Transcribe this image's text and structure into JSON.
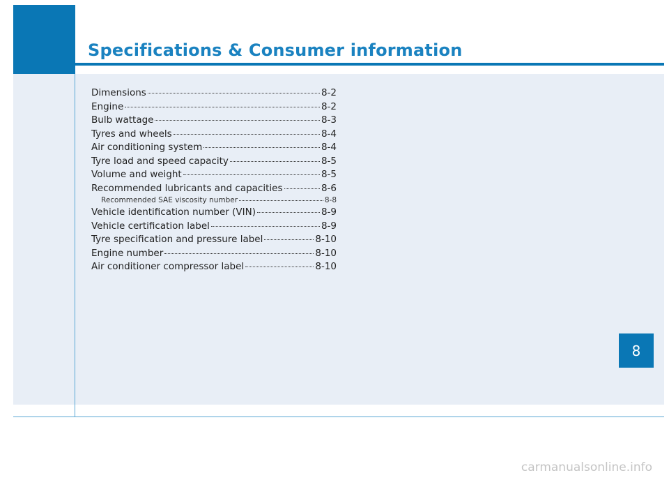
{
  "header": {
    "title": "Specifications & Consumer information"
  },
  "toc": [
    {
      "label": "Dimensions",
      "page": "8-2",
      "sub": false
    },
    {
      "label": "Engine",
      "page": "8-2",
      "sub": false
    },
    {
      "label": "Bulb wattage",
      "page": "8-3",
      "sub": false
    },
    {
      "label": "Tyres and wheels",
      "page": "8-4",
      "sub": false
    },
    {
      "label": "Air conditioning system",
      "page": "8-4",
      "sub": false
    },
    {
      "label": "Tyre load and speed capacity",
      "page": "8-5",
      "sub": false
    },
    {
      "label": "Volume and weight",
      "page": "8-5",
      "sub": false
    },
    {
      "label": "Recommended lubricants and capacities",
      "page": "8-6",
      "sub": false
    },
    {
      "label": "Recommended SAE viscosity number",
      "page": "8-8",
      "sub": true
    },
    {
      "label": "Vehicle identification number (VIN)",
      "page": "8-9",
      "sub": false
    },
    {
      "label": "Vehicle certification label",
      "page": "8-9",
      "sub": false
    },
    {
      "label": "Tyre specification and pressure label",
      "page": "8-10",
      "sub": false
    },
    {
      "label": "Engine number",
      "page": "8-10",
      "sub": false
    },
    {
      "label": "Air conditioner compressor label",
      "page": "8-10",
      "sub": false
    }
  ],
  "chapter_tab": {
    "number": "8"
  },
  "watermark": {
    "text": "carmanualsonline.info"
  },
  "colors": {
    "accent": "#0a77b5",
    "title": "#1a82c0",
    "panel": "#e8eef6"
  }
}
